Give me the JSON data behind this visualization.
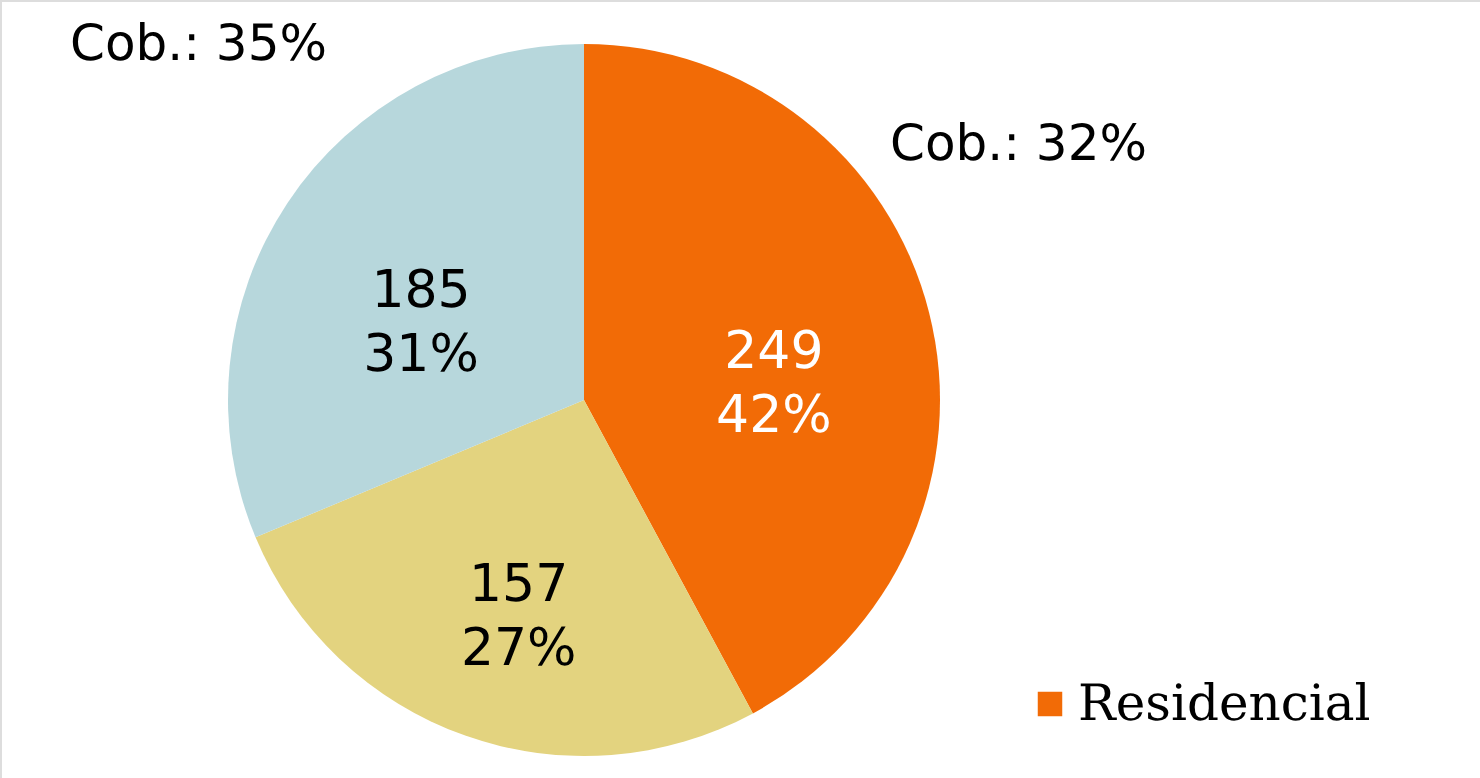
{
  "chart_data": {
    "type": "pie",
    "categories": [
      "Residencial",
      null,
      null
    ],
    "values": [
      249,
      157,
      185
    ],
    "colors": [
      "#f26b06",
      "#e3d37f",
      "#b7d7dc"
    ],
    "value_labels": [
      "249\n42%",
      "157\n27%",
      "185\n31%"
    ],
    "annotations": [
      "Cob.: 35%",
      "Cob.: 32%"
    ],
    "legend": "bottom right"
  }
}
